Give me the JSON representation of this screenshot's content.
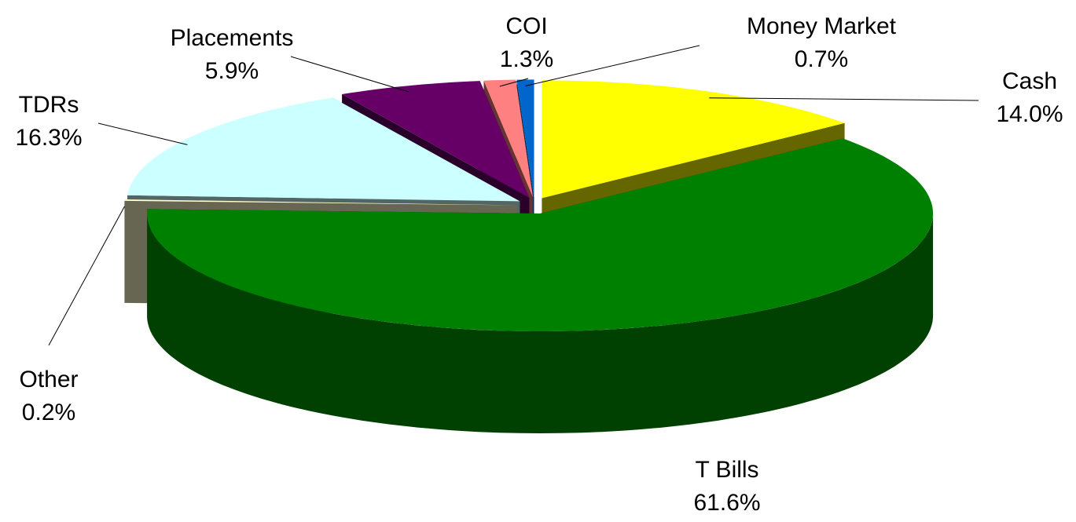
{
  "chart_data": {
    "type": "pie3d",
    "categories": [
      "Cash",
      "T Bills",
      "Other",
      "TDRs",
      "Placements",
      "COI",
      "Money Market"
    ],
    "values": [
      14.0,
      61.6,
      0.2,
      16.3,
      5.9,
      1.3,
      0.7
    ],
    "value_labels": [
      "14.0%",
      "61.6%",
      "0.2%",
      "16.3%",
      "5.9%",
      "1.3%",
      "0.7%"
    ],
    "colors": [
      "#ffff00",
      "#008000",
      "#ffffcc",
      "#ccffff",
      "#660066",
      "#ff8080",
      "#0066cc"
    ]
  }
}
